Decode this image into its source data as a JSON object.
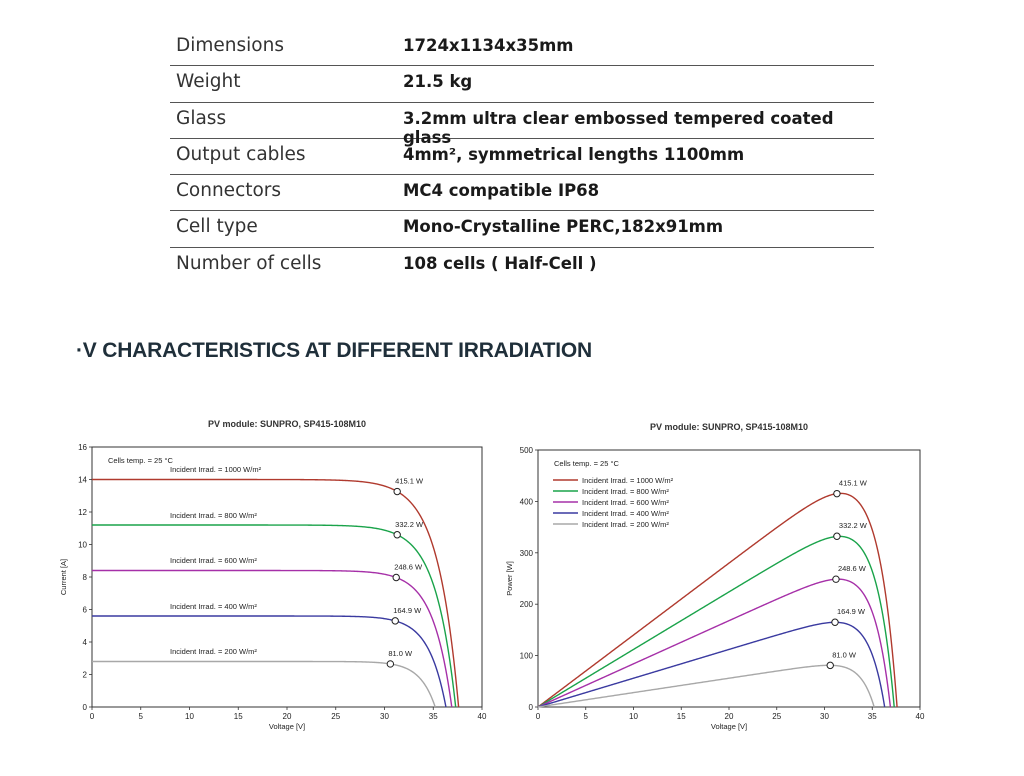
{
  "specs": [
    {
      "label": "Dimensions",
      "value": "1724x1134x35mm"
    },
    {
      "label": "Weight",
      "value": "21.5 kg"
    },
    {
      "label": "Glass",
      "value": "3.2mm ultra clear embossed tempered coated glass"
    },
    {
      "label": "Output cables",
      "value": "4mm², symmetrical lengths 1100mm"
    },
    {
      "label": "Connectors",
      "value": "MC4 compatible IP68"
    },
    {
      "label": "Cell type",
      "value": "Mono-Crystalline PERC,182x91mm"
    },
    {
      "label": "Number of cells",
      "value": "108 cells ( Half-Cell )"
    }
  ],
  "section_title": "·V CHARACTERISTICS AT DIFFERENT IRRADIATION",
  "colors": {
    "1000": "#b03a2e",
    "800": "#1aa34a",
    "600": "#a630a8",
    "400": "#3a3aa0",
    "200": "#a8a8a8"
  },
  "chart_data": [
    {
      "type": "line",
      "title": "PV module:  SUNPRO,  SP415-108M10",
      "xlabel": "Voltage [V]",
      "ylabel": "Current [A]",
      "xlim": [
        0,
        40
      ],
      "ylim": [
        0,
        16
      ],
      "xticks": [
        0,
        5,
        10,
        15,
        20,
        25,
        30,
        35,
        40
      ],
      "yticks": [
        0,
        2,
        4,
        6,
        8,
        10,
        12,
        14,
        16
      ],
      "grid": false,
      "temp_label": "Cells temp. = 25 °C",
      "series": [
        {
          "key": "1000",
          "name": "Incident Irrad. = 1000 W/m²",
          "isc": 14.0,
          "voc": 37.6,
          "mpp": [
            31.3,
            13.26
          ],
          "mpp_label": "415.1 W"
        },
        {
          "key": "800",
          "name": "Incident Irrad. = 800 W/m²",
          "isc": 11.2,
          "voc": 37.3,
          "mpp": [
            31.3,
            10.6
          ],
          "mpp_label": "332.2 W"
        },
        {
          "key": "600",
          "name": "Incident Irrad. = 600 W/m²",
          "isc": 8.4,
          "voc": 36.9,
          "mpp": [
            31.2,
            7.97
          ],
          "mpp_label": "248.6 W"
        },
        {
          "key": "400",
          "name": "Incident Irrad. = 400 W/m²",
          "isc": 5.6,
          "voc": 36.3,
          "mpp": [
            31.1,
            5.3
          ],
          "mpp_label": "164.9 W"
        },
        {
          "key": "200",
          "name": "Incident Irrad. = 200 W/m²",
          "isc": 2.8,
          "voc": 35.2,
          "mpp": [
            30.6,
            2.65
          ],
          "mpp_label": "81.0 W"
        }
      ]
    },
    {
      "type": "line",
      "title": "PV module:  SUNPRO,  SP415-108M10",
      "xlabel": "Voltage [V]",
      "ylabel": "Power [W]",
      "xlim": [
        0,
        40
      ],
      "ylim": [
        0,
        500
      ],
      "xticks": [
        0,
        5,
        10,
        15,
        20,
        25,
        30,
        35,
        40
      ],
      "yticks": [
        0,
        100,
        200,
        300,
        400,
        500
      ],
      "grid": false,
      "temp_label": "Cells temp. = 25 °C",
      "legend": "top-left",
      "series": [
        {
          "key": "1000",
          "name": "Incident Irrad. = 1000 W/m²",
          "mpp": [
            31.3,
            415.1
          ],
          "mpp_label": "415.1 W"
        },
        {
          "key": "800",
          "name": "Incident Irrad. = 800 W/m²",
          "mpp": [
            31.3,
            332.2
          ],
          "mpp_label": "332.2 W"
        },
        {
          "key": "600",
          "name": "Incident Irrad. = 600 W/m²",
          "mpp": [
            31.2,
            248.6
          ],
          "mpp_label": "248.6 W"
        },
        {
          "key": "400",
          "name": "Incident Irrad. = 400 W/m²",
          "mpp": [
            31.1,
            164.9
          ],
          "mpp_label": "164.9 W"
        },
        {
          "key": "200",
          "name": "Incident Irrad. = 200 W/m²",
          "mpp": [
            30.6,
            81.0
          ],
          "mpp_label": "81.0 W"
        }
      ]
    }
  ]
}
